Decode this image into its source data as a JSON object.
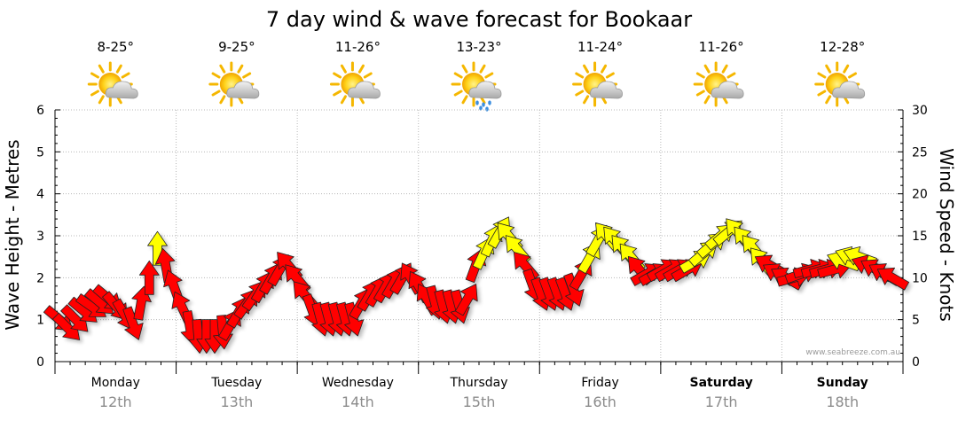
{
  "chart_data": {
    "type": "line",
    "title": "7 day wind & wave forecast for Bookaar",
    "ylabel_left": "Wave Height - Metres",
    "ylabel_right": "Wind Speed - Knots",
    "ylim_left": [
      0,
      6
    ],
    "ylim_right": [
      0,
      30
    ],
    "yticks_left": [
      "0",
      "1",
      "2",
      "3",
      "4",
      "5",
      "6"
    ],
    "yticks_right": [
      "0",
      "5",
      "10",
      "15",
      "20",
      "25",
      "30"
    ],
    "grid": true,
    "credit": "www.seabreeze.com.au",
    "days": [
      {
        "name": "Monday",
        "date": "12th",
        "temp": "8-25°",
        "weather": "partly-cloudy",
        "bold": false
      },
      {
        "name": "Tuesday",
        "date": "13th",
        "temp": "9-25°",
        "weather": "partly-cloudy",
        "bold": false
      },
      {
        "name": "Wednesday",
        "date": "14th",
        "temp": "11-26°",
        "weather": "partly-cloudy",
        "bold": false
      },
      {
        "name": "Thursday",
        "date": "15th",
        "temp": "13-23°",
        "weather": "showers",
        "bold": false
      },
      {
        "name": "Friday",
        "date": "16th",
        "temp": "11-24°",
        "weather": "partly-cloudy",
        "bold": false
      },
      {
        "name": "Saturday",
        "date": "17th",
        "temp": "11-26°",
        "weather": "partly-cloudy",
        "bold": true
      },
      {
        "name": "Sunday",
        "date": "18th",
        "temp": "12-28°",
        "weather": "partly-cloudy",
        "bold": true
      }
    ],
    "wind_series": {
      "name": "Wind Speed - Knots",
      "color_moderate": "#ff0000",
      "color_fresh": "#ffff00",
      "fresh_threshold": 12,
      "points": [
        [
          0.05,
          5.0,
          130
        ],
        [
          0.14,
          4.0,
          135
        ],
        [
          0.23,
          5.0,
          135
        ],
        [
          0.32,
          6.0,
          130
        ],
        [
          0.41,
          6.5,
          125
        ],
        [
          0.5,
          7.0,
          130
        ],
        [
          0.59,
          7.5,
          130
        ],
        [
          0.68,
          6.5,
          140
        ],
        [
          0.77,
          5.5,
          150
        ],
        [
          0.86,
          4.5,
          160
        ],
        [
          0.95,
          7.0,
          10
        ],
        [
          1.04,
          10.0,
          0
        ],
        [
          1.13,
          13.5,
          0
        ],
        [
          1.22,
          11.5,
          350
        ],
        [
          1.31,
          9.0,
          340
        ],
        [
          1.4,
          6.5,
          335
        ],
        [
          1.49,
          4.0,
          170
        ],
        [
          1.58,
          3.0,
          175
        ],
        [
          1.67,
          3.0,
          180
        ],
        [
          1.76,
          3.0,
          180
        ],
        [
          1.85,
          3.5,
          175
        ],
        [
          1.94,
          4.5,
          30
        ],
        [
          2.03,
          6.0,
          30
        ],
        [
          2.12,
          7.0,
          35
        ],
        [
          2.21,
          8.0,
          35
        ],
        [
          2.3,
          9.0,
          30
        ],
        [
          2.39,
          10.0,
          30
        ],
        [
          2.48,
          11.0,
          30
        ],
        [
          2.57,
          11.5,
          320
        ],
        [
          2.66,
          10.0,
          320
        ],
        [
          2.75,
          8.0,
          320
        ],
        [
          2.84,
          6.0,
          160
        ],
        [
          2.93,
          5.0,
          165
        ],
        [
          3.02,
          5.0,
          165
        ],
        [
          3.11,
          5.0,
          165
        ],
        [
          3.2,
          5.0,
          165
        ],
        [
          3.29,
          5.0,
          165
        ],
        [
          3.38,
          7.0,
          30
        ],
        [
          3.47,
          8.0,
          30
        ],
        [
          3.56,
          8.5,
          30
        ],
        [
          3.65,
          9.0,
          30
        ],
        [
          3.74,
          9.5,
          30
        ],
        [
          3.83,
          10.0,
          30
        ],
        [
          3.92,
          10.0,
          330
        ],
        [
          4.01,
          9.0,
          330
        ],
        [
          4.1,
          7.5,
          330
        ],
        [
          4.19,
          7.0,
          165
        ],
        [
          4.28,
          6.5,
          165
        ],
        [
          4.37,
          6.5,
          165
        ],
        [
          4.46,
          6.5,
          165
        ],
        [
          4.55,
          7.5,
          30
        ],
        [
          4.64,
          11.5,
          20
        ],
        [
          4.73,
          13.0,
          25
        ],
        [
          4.82,
          14.5,
          25
        ],
        [
          4.91,
          15.5,
          30
        ],
        [
          5.0,
          15.0,
          320
        ],
        [
          5.09,
          13.5,
          320
        ],
        [
          5.18,
          11.5,
          320
        ],
        [
          5.27,
          9.0,
          160
        ],
        [
          5.36,
          8.0,
          160
        ],
        [
          5.45,
          8.0,
          160
        ],
        [
          5.54,
          8.0,
          160
        ],
        [
          5.63,
          8.0,
          160
        ],
        [
          5.72,
          8.5,
          160
        ],
        [
          5.81,
          10.5,
          30
        ],
        [
          5.9,
          12.5,
          30
        ],
        [
          5.99,
          14.5,
          30
        ],
        [
          6.08,
          15.0,
          320
        ],
        [
          6.17,
          14.5,
          320
        ],
        [
          6.26,
          13.5,
          320
        ],
        [
          6.35,
          12.5,
          320
        ],
        [
          6.44,
          11.0,
          320
        ],
        [
          6.53,
          10.5,
          60
        ],
        [
          6.62,
          10.5,
          60
        ],
        [
          6.71,
          11.0,
          60
        ],
        [
          6.8,
          11.0,
          60
        ],
        [
          6.89,
          11.0,
          60
        ],
        [
          6.98,
          11.0,
          60
        ],
        [
          7.07,
          12.0,
          60
        ],
        [
          7.16,
          13.0,
          50
        ],
        [
          7.25,
          14.0,
          50
        ],
        [
          7.34,
          15.0,
          50
        ],
        [
          7.43,
          15.5,
          50
        ],
        [
          7.52,
          15.5,
          320
        ],
        [
          7.61,
          14.5,
          320
        ],
        [
          7.7,
          13.5,
          320
        ],
        [
          7.79,
          12.0,
          320
        ],
        [
          7.88,
          11.5,
          300
        ],
        [
          7.97,
          10.5,
          300
        ],
        [
          8.06,
          10.0,
          300
        ],
        [
          8.15,
          10.0,
          75
        ],
        [
          8.24,
          10.5,
          70
        ],
        [
          8.33,
          11.0,
          75
        ],
        [
          8.42,
          11.0,
          75
        ],
        [
          8.51,
          11.0,
          75
        ],
        [
          8.6,
          11.0,
          75
        ],
        [
          8.69,
          12.0,
          290
        ],
        [
          8.78,
          12.5,
          290
        ],
        [
          8.87,
          12.5,
          290
        ],
        [
          8.96,
          11.5,
          290
        ],
        [
          9.05,
          11.0,
          300
        ],
        [
          9.14,
          10.5,
          300
        ],
        [
          9.23,
          10.0,
          300
        ]
      ]
    }
  }
}
